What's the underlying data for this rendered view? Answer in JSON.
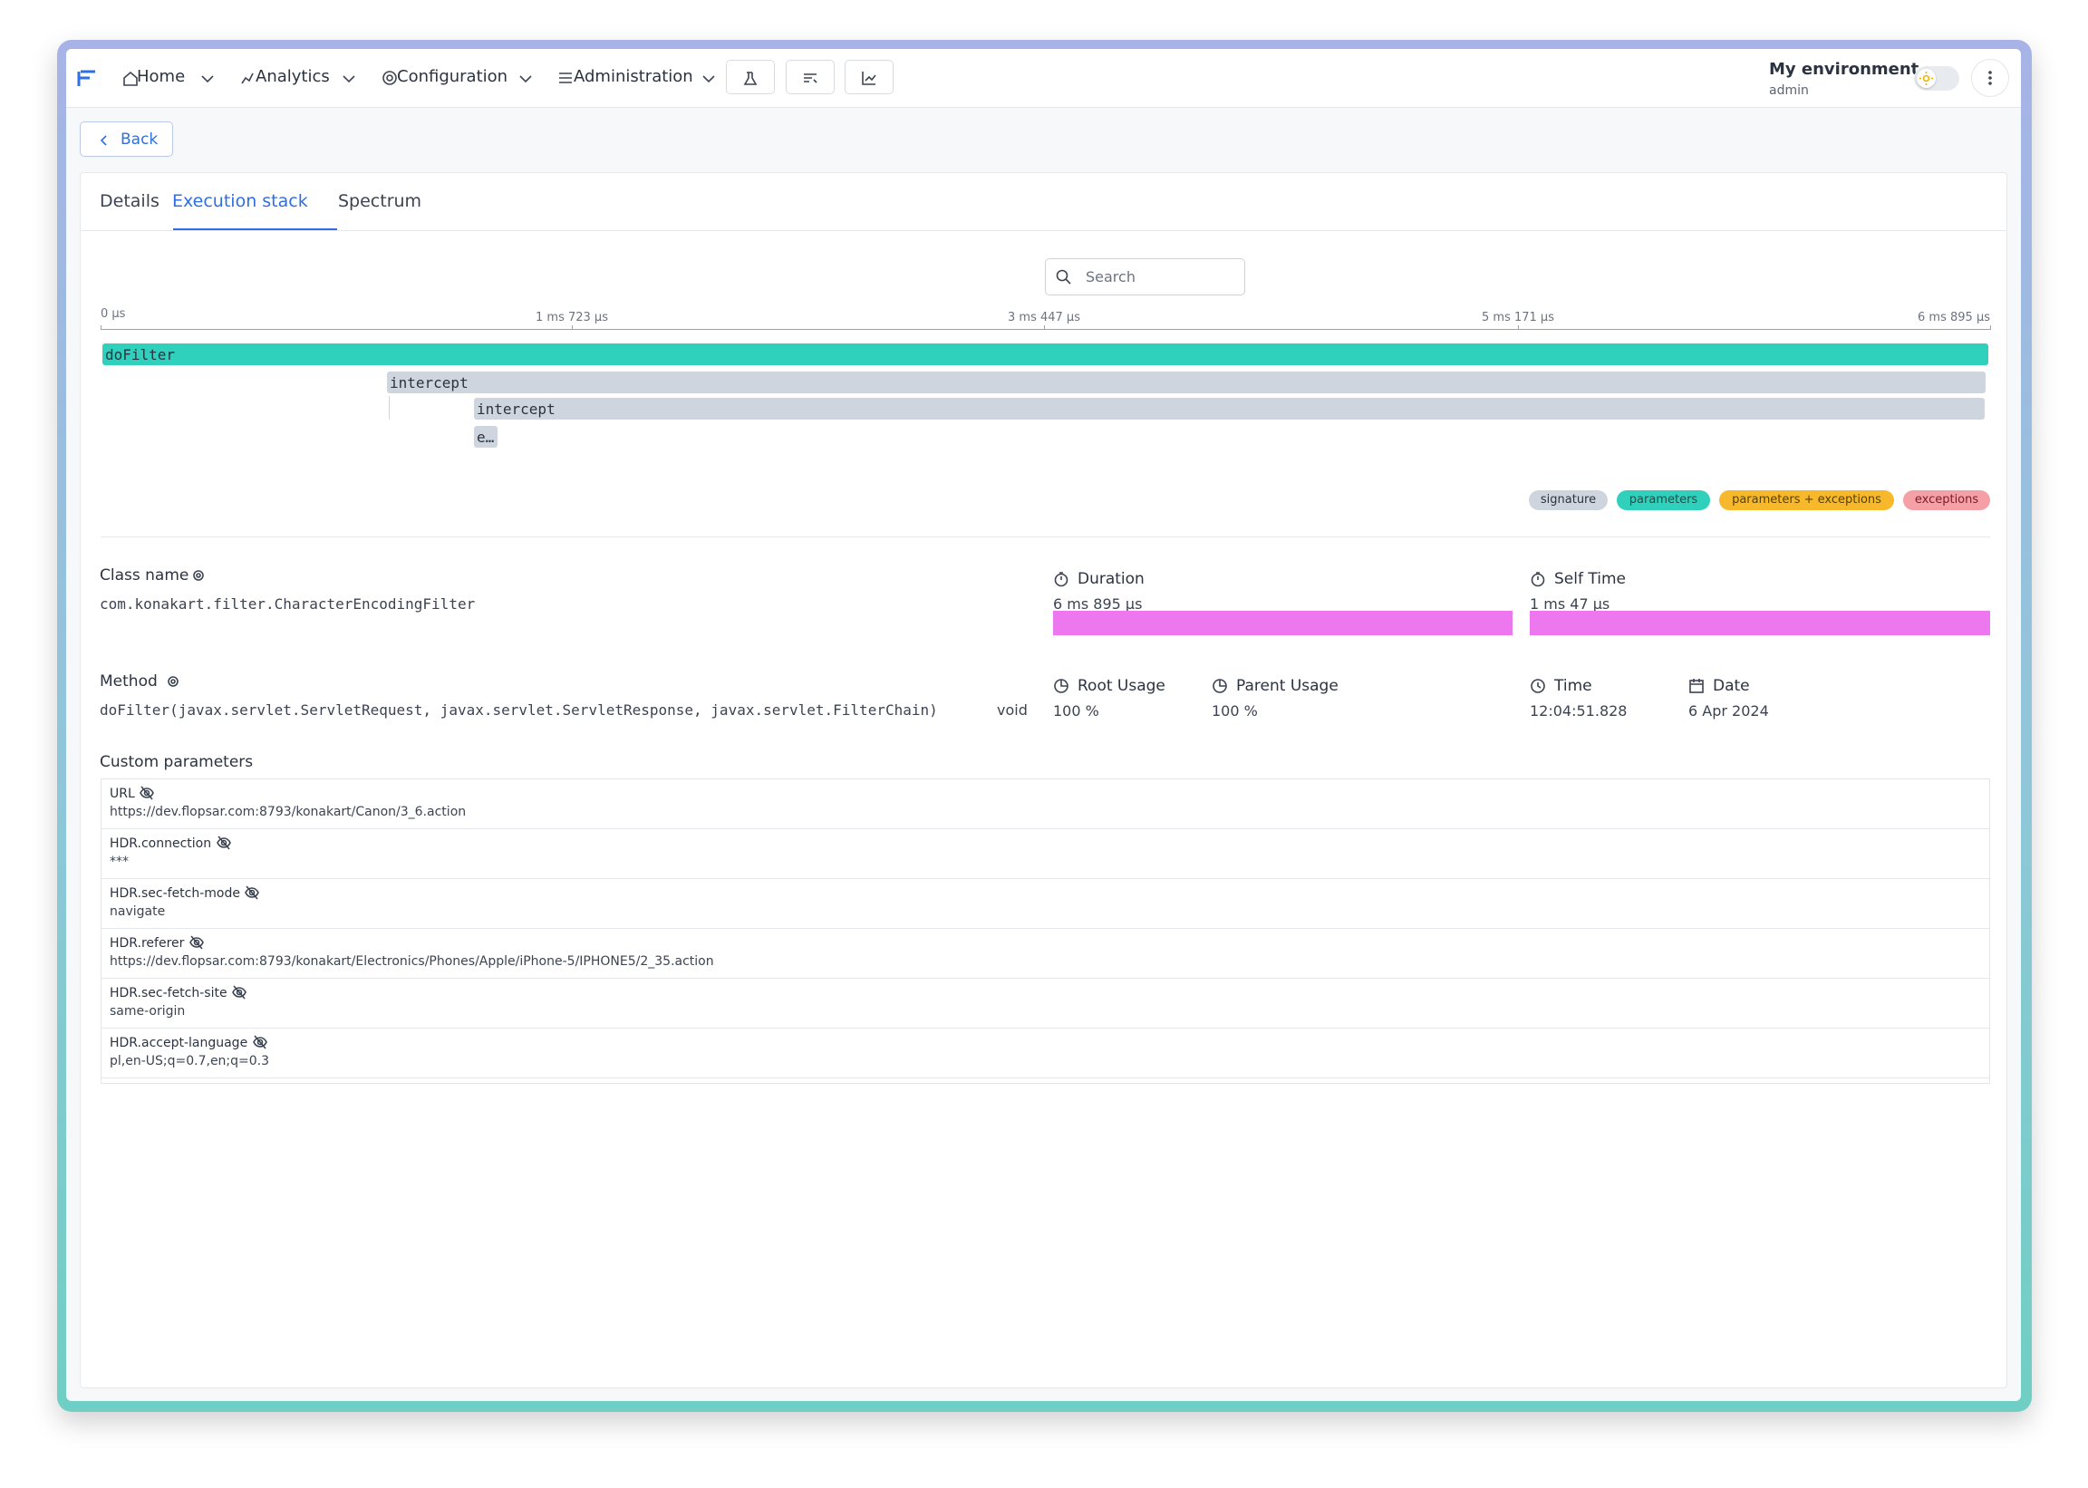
{
  "nav": {
    "items": [
      "Home",
      "Analytics",
      "Configuration",
      "Administration"
    ],
    "environment": "My environment",
    "user": "admin"
  },
  "back": "Back",
  "tabs": [
    "Details",
    "Execution stack",
    "Spectrum"
  ],
  "active_tab": 1,
  "search_placeholder": "Search",
  "timeline": {
    "ticks": [
      "0 µs",
      "1 ms 723 µs",
      "3 ms 447 µs",
      "5 ms 171 µs",
      "6 ms 895 µs"
    ],
    "frames": [
      "doFilter",
      "intercept",
      "intercept",
      "e…"
    ],
    "legend": [
      "signature",
      "parameters",
      "parameters + exceptions",
      "exceptions"
    ]
  },
  "details": {
    "class_name": {
      "label": "Class name",
      "value": "com.konakart.filter.CharacterEncodingFilter"
    },
    "method": {
      "label": "Method",
      "value": "doFilter(javax.servlet.ServletRequest, javax.servlet.ServletResponse, javax.servlet.FilterChain)",
      "return_type": "void"
    },
    "duration": {
      "label": "Duration",
      "value": "6 ms 895 µs"
    },
    "self_time": {
      "label": "Self Time",
      "value": "1 ms 47 µs"
    },
    "root_usage": {
      "label": "Root Usage",
      "value": "100 %"
    },
    "parent_usage": {
      "label": "Parent Usage",
      "value": "100 %"
    },
    "time": {
      "label": "Time",
      "value": "12:04:51.828"
    },
    "date": {
      "label": "Date",
      "value": "6 Apr 2024"
    }
  },
  "custom_parameters": {
    "title": "Custom parameters",
    "rows": [
      {
        "key": "URL",
        "value": "https://dev.flopsar.com:8793/konakart/Canon/3_6.action"
      },
      {
        "key": "HDR.connection",
        "value": "***"
      },
      {
        "key": "HDR.sec-fetch-mode",
        "value": "navigate"
      },
      {
        "key": "HDR.referer",
        "value": "https://dev.flopsar.com:8793/konakart/Electronics/Phones/Apple/iPhone-5/IPHONE5/2_35.action"
      },
      {
        "key": "HDR.sec-fetch-site",
        "value": "same-origin"
      },
      {
        "key": "HDR.accept-language",
        "value": "pl,en-US;q=0.7,en;q=0.3"
      }
    ]
  }
}
